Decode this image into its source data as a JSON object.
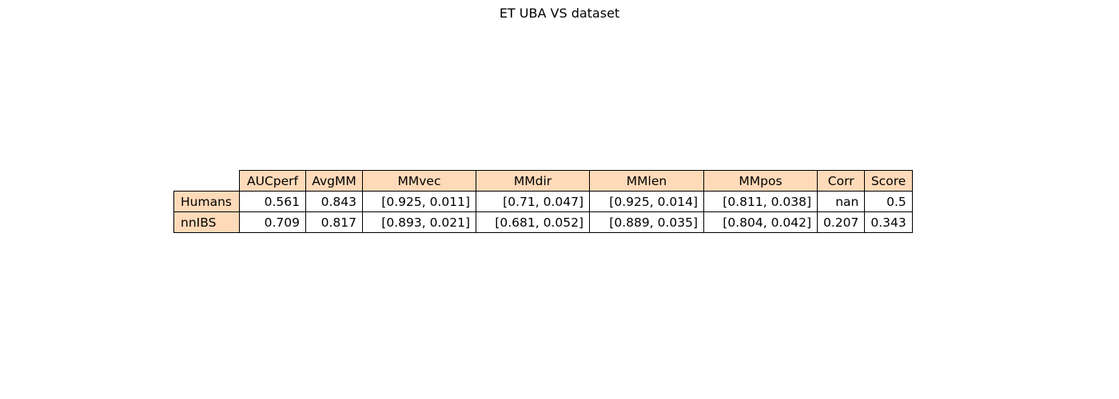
{
  "colors": {
    "header_fill": "#ffdab9",
    "cell_fill": "#ffffff",
    "border": "#000000"
  },
  "chart_data": {
    "type": "table",
    "title": "ET UBA VS dataset",
    "columns": [
      "AUCperf",
      "AvgMM",
      "MMvec",
      "MMdir",
      "MMlen",
      "MMpos",
      "Corr",
      "Score"
    ],
    "rows": [
      {
        "label": "Humans",
        "values": [
          "0.561",
          "0.843",
          "[0.925, 0.011]",
          "[0.71, 0.047]",
          "[0.925, 0.014]",
          "[0.811, 0.038]",
          "nan",
          "0.5"
        ]
      },
      {
        "label": "nnIBS",
        "values": [
          "0.709",
          "0.817",
          "[0.893, 0.021]",
          "[0.681, 0.052]",
          "[0.889, 0.035]",
          "[0.804, 0.042]",
          "0.207",
          "0.343"
        ]
      }
    ]
  }
}
